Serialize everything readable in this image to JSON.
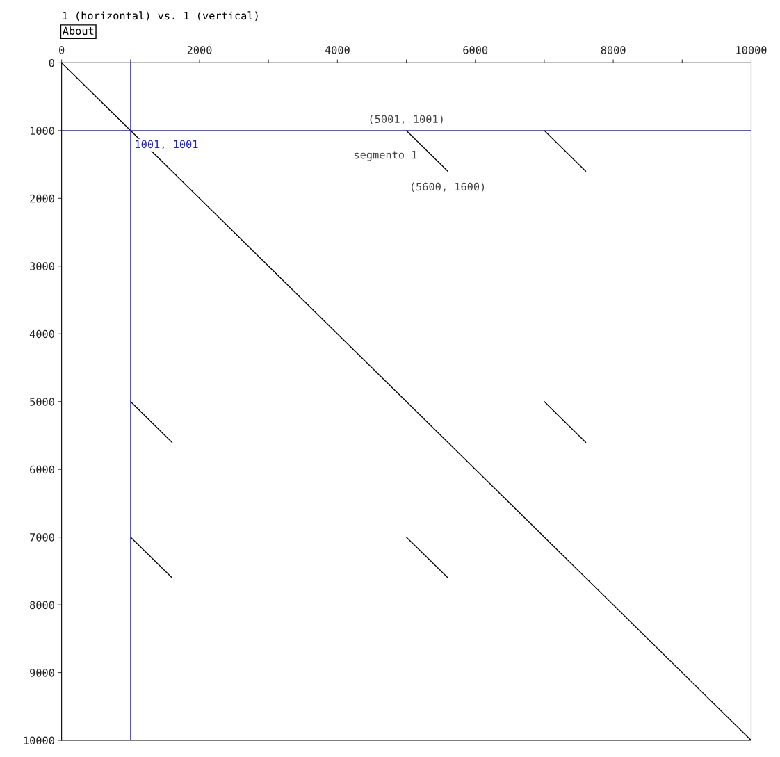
{
  "chart_data": {
    "type": "line",
    "title": "1 (horizontal) vs. 1 (vertical)",
    "annotations": [
      "About",
      {
        "text": "(5001, 1001)",
        "x": 5001,
        "y": 1001
      },
      {
        "text": "segmento 1",
        "x": 5300,
        "y": 1300
      },
      {
        "text": "(5600, 1600)",
        "x": 5600,
        "y": 1600
      }
    ],
    "series": [
      {
        "color": "#000000",
        "x": [
          0,
          10000
        ],
        "values": [
          0,
          10000
        ]
      },
      {
        "color": "#000000",
        "x": [
          5001,
          5600
        ],
        "values": [
          1001,
          1600
        ]
      },
      {
        "color": "#000000",
        "x": [
          7000,
          7600
        ],
        "values": [
          1000,
          1600
        ]
      },
      {
        "color": "#000000",
        "x": [
          1000,
          1600
        ],
        "values": [
          5000,
          5600
        ]
      },
      {
        "color": "#000000",
        "x": [
          7000,
          7600
        ],
        "values": [
          5000,
          5600
        ]
      },
      {
        "color": "#000000",
        "x": [
          1000,
          1600
        ],
        "values": [
          7000,
          7600
        ]
      },
      {
        "color": "#000000",
        "x": [
          5000,
          5600
        ],
        "values": [
          7000,
          7600
        ]
      }
    ],
    "ref_lines": [
      {
        "axis": "x",
        "value": 1001,
        "color": "#2222cc"
      },
      {
        "axis": "y",
        "value": 1001,
        "label": "1001, 1001",
        "color": "#2222cc"
      }
    ],
    "xlim": [
      0,
      10000
    ],
    "ylim": [
      10000,
      0
    ],
    "xticks": [
      0,
      {
        "value": 1000,
        "label": null
      },
      2000,
      {
        "value": 3000,
        "label": null
      },
      4000,
      {
        "value": 5000,
        "label": null
      },
      6000,
      {
        "value": 7000,
        "label": null
      },
      8000,
      {
        "value": 9000,
        "label": null
      },
      10000
    ],
    "yticks": [
      0,
      1000,
      2000,
      3000,
      4000,
      5000,
      6000,
      7000,
      8000,
      9000,
      10000
    ],
    "grid": false,
    "legend": false,
    "marker": "none",
    "line_style": "solid"
  }
}
